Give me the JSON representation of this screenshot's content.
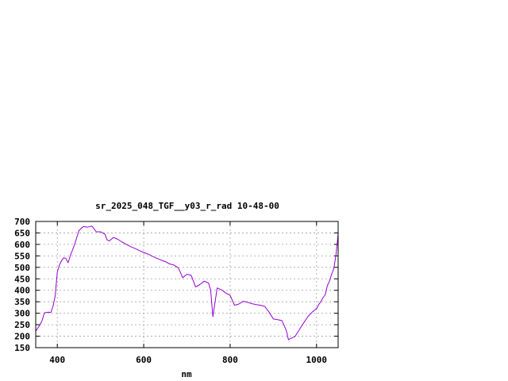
{
  "chart_data": {
    "type": "line",
    "title": "sr_2025_048_TGF__y03_r_rad 10-48-00",
    "xlabel": "nm",
    "ylabel": "",
    "xlim": [
      350,
      1050
    ],
    "ylim": [
      150,
      700
    ],
    "x_ticks": [
      400,
      600,
      800,
      1000
    ],
    "y_ticks": [
      150,
      200,
      250,
      300,
      350,
      400,
      450,
      500,
      550,
      600,
      650,
      700
    ],
    "grid": true,
    "legend": "none",
    "colors": {
      "line": "#9400d3",
      "grid": "#a0a0a0",
      "frame": "#000000"
    },
    "series": [
      {
        "values_x": [
          350,
          360,
          365,
          370,
          380,
          385,
          390,
          395,
          400,
          405,
          410,
          415,
          420,
          425,
          430,
          440,
          450,
          460,
          470,
          480,
          485,
          490,
          500,
          510,
          515,
          520,
          530,
          540,
          550,
          560,
          570,
          580,
          590,
          600,
          610,
          620,
          630,
          640,
          650,
          660,
          670,
          680,
          685,
          690,
          700,
          710,
          720,
          730,
          740,
          750,
          755,
          760,
          770,
          780,
          790,
          800,
          810,
          820,
          830,
          840,
          850,
          860,
          870,
          880,
          890,
          900,
          910,
          920,
          930,
          935,
          940,
          950,
          960,
          970,
          980,
          990,
          1000,
          1005,
          1010,
          1015,
          1020,
          1025,
          1030,
          1035,
          1040,
          1045,
          1050
        ],
        "values_y": [
          222,
          250,
          270,
          302,
          305,
          303,
          330,
          375,
          480,
          510,
          530,
          542,
          538,
          520,
          550,
          600,
          660,
          678,
          675,
          680,
          668,
          655,
          655,
          645,
          620,
          615,
          630,
          622,
          610,
          600,
          590,
          582,
          573,
          565,
          558,
          548,
          540,
          532,
          525,
          515,
          510,
          498,
          478,
          455,
          470,
          465,
          415,
          425,
          440,
          432,
          400,
          285,
          410,
          402,
          388,
          378,
          335,
          340,
          352,
          348,
          342,
          338,
          335,
          330,
          305,
          275,
          272,
          268,
          225,
          185,
          190,
          198,
          228,
          258,
          285,
          305,
          320,
          338,
          350,
          368,
          380,
          420,
          440,
          470,
          495,
          555,
          645
        ]
      }
    ]
  }
}
